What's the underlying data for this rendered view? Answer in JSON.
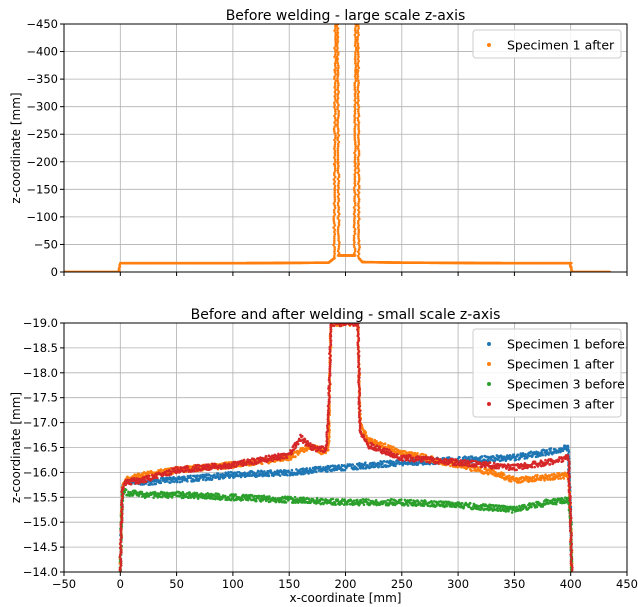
{
  "chart_data": [
    {
      "type": "scatter",
      "title": "Before welding - large scale z-axis",
      "xlabel": "",
      "ylabel": "z-coordinate [mm]",
      "xlim": [
        -50,
        450
      ],
      "ylim": [
        0,
        -450
      ],
      "y_inverted": true,
      "x_ticks": [
        -50,
        0,
        50,
        100,
        150,
        200,
        250,
        300,
        350,
        400,
        450
      ],
      "x_tick_labels_visible": false,
      "y_ticks": [
        -450,
        -400,
        -350,
        -300,
        -250,
        -200,
        -150,
        -100,
        -50,
        0
      ],
      "y_tick_labels": [
        "−450",
        "−400",
        "−350",
        "−300",
        "−250",
        "−200",
        "−150",
        "−100",
        "−50",
        "0"
      ],
      "grid": true,
      "legend_position": "top-right",
      "series": [
        {
          "name": "Specimen 1 after",
          "color": "#ff7f0e",
          "points": [
            [
              -50,
              0
            ],
            [
              -1,
              0
            ],
            [
              0,
              -16
            ],
            [
              50,
              -16
            ],
            [
              100,
              -16
            ],
            [
              150,
              -16.5
            ],
            [
              185,
              -17
            ],
            [
              190,
              -25
            ],
            [
              191,
              -450
            ],
            [
              193,
              -450
            ],
            [
              194,
              -30
            ],
            [
              208,
              -30
            ],
            [
              209,
              -450
            ],
            [
              211,
              -450
            ],
            [
              212,
              -25
            ],
            [
              215,
              -18
            ],
            [
              250,
              -17
            ],
            [
              300,
              -16.5
            ],
            [
              350,
              -16
            ],
            [
              400,
              -16
            ],
            [
              401,
              0
            ],
            [
              435,
              0
            ]
          ]
        }
      ]
    },
    {
      "type": "scatter",
      "title": "Before and after welding - small scale z-axis",
      "xlabel": "x-coordinate [mm]",
      "ylabel": "z-coordinate [mm]",
      "xlim": [
        -50,
        450
      ],
      "ylim": [
        -14.0,
        -19.0
      ],
      "y_inverted": true,
      "x_ticks": [
        -50,
        0,
        50,
        100,
        150,
        200,
        250,
        300,
        350,
        400,
        450
      ],
      "x_tick_labels": [
        "−50",
        "0",
        "50",
        "100",
        "150",
        "200",
        "250",
        "300",
        "350",
        "400",
        "450"
      ],
      "y_ticks": [
        -19.0,
        -18.5,
        -18.0,
        -17.5,
        -17.0,
        -16.5,
        -16.0,
        -15.5,
        -15.0,
        -14.5,
        -14.0
      ],
      "y_tick_labels": [
        "−19.0",
        "−18.5",
        "−18.0",
        "−17.5",
        "−17.0",
        "−16.5",
        "−16.0",
        "−15.5",
        "−15.0",
        "−14.5",
        "−14.0"
      ],
      "grid": true,
      "legend_position": "top-right",
      "series": [
        {
          "name": "Specimen 1 before",
          "color": "#1f77b4",
          "points": [
            [
              0,
              -14.0
            ],
            [
              1,
              -15.0
            ],
            [
              2,
              -15.7
            ],
            [
              5,
              -15.85
            ],
            [
              20,
              -15.8
            ],
            [
              50,
              -15.85
            ],
            [
              100,
              -15.95
            ],
            [
              150,
              -16.0
            ],
            [
              200,
              -16.1
            ],
            [
              250,
              -16.2
            ],
            [
              300,
              -16.25
            ],
            [
              350,
              -16.3
            ],
            [
              390,
              -16.45
            ],
            [
              398,
              -16.5
            ],
            [
              400,
              -15.0
            ],
            [
              401,
              -14.0
            ]
          ]
        },
        {
          "name": "Specimen 1 after",
          "color": "#ff7f0e",
          "points": [
            [
              0,
              -14.0
            ],
            [
              1,
              -15.0
            ],
            [
              2,
              -15.7
            ],
            [
              5,
              -15.85
            ],
            [
              20,
              -15.95
            ],
            [
              50,
              -16.05
            ],
            [
              100,
              -16.15
            ],
            [
              150,
              -16.3
            ],
            [
              170,
              -16.55
            ],
            [
              180,
              -16.4
            ],
            [
              185,
              -16.5
            ],
            [
              187,
              -19.0
            ],
            [
              189,
              -19.0
            ],
            [
              211,
              -19.0
            ],
            [
              213,
              -17.0
            ],
            [
              220,
              -16.65
            ],
            [
              250,
              -16.4
            ],
            [
              300,
              -16.15
            ],
            [
              330,
              -16.0
            ],
            [
              350,
              -15.85
            ],
            [
              380,
              -15.9
            ],
            [
              398,
              -15.95
            ],
            [
              400,
              -15.0
            ],
            [
              401,
              -14.0
            ]
          ]
        },
        {
          "name": "Specimen 3 before",
          "color": "#2ca02c",
          "points": [
            [
              0,
              -14.0
            ],
            [
              1,
              -15.0
            ],
            [
              2,
              -15.6
            ],
            [
              5,
              -15.6
            ],
            [
              20,
              -15.55
            ],
            [
              50,
              -15.55
            ],
            [
              100,
              -15.5
            ],
            [
              150,
              -15.45
            ],
            [
              200,
              -15.4
            ],
            [
              250,
              -15.4
            ],
            [
              300,
              -15.35
            ],
            [
              350,
              -15.25
            ],
            [
              380,
              -15.4
            ],
            [
              398,
              -15.45
            ],
            [
              400,
              -15.0
            ],
            [
              401,
              -14.0
            ]
          ]
        },
        {
          "name": "Specimen 3 after",
          "color": "#d62728",
          "points": [
            [
              0,
              -14.0
            ],
            [
              1,
              -15.0
            ],
            [
              2,
              -15.7
            ],
            [
              5,
              -15.8
            ],
            [
              20,
              -15.85
            ],
            [
              50,
              -16.05
            ],
            [
              100,
              -16.15
            ],
            [
              150,
              -16.35
            ],
            [
              160,
              -16.7
            ],
            [
              170,
              -16.5
            ],
            [
              183,
              -16.45
            ],
            [
              185,
              -17.2
            ],
            [
              187,
              -19.0
            ],
            [
              189,
              -19.0
            ],
            [
              211,
              -19.0
            ],
            [
              213,
              -16.8
            ],
            [
              220,
              -16.55
            ],
            [
              250,
              -16.3
            ],
            [
              300,
              -16.2
            ],
            [
              350,
              -16.1
            ],
            [
              380,
              -16.2
            ],
            [
              398,
              -16.3
            ],
            [
              400,
              -15.0
            ],
            [
              401,
              -14.0
            ]
          ]
        }
      ]
    }
  ]
}
